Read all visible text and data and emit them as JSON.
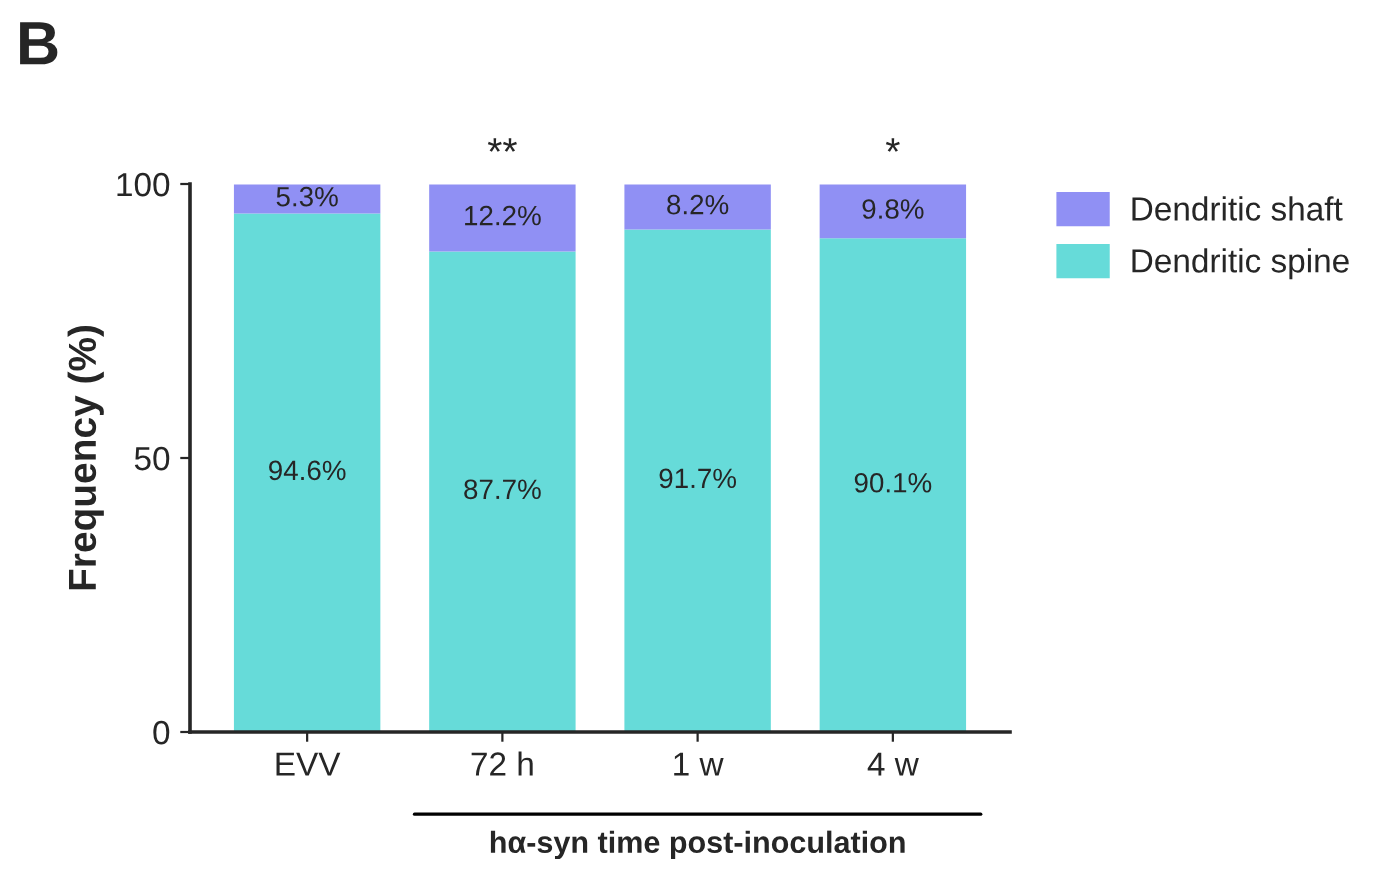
{
  "chart_data": {
    "type": "bar",
    "stacked": true,
    "categories": [
      "EVV",
      "72 h",
      "1 w",
      "4 w"
    ],
    "series": [
      {
        "name": "Dendritic spine",
        "color": "#66dbd9",
        "values": [
          94.6,
          87.7,
          91.7,
          90.1
        ],
        "value_labels": [
          "94.6%",
          "87.7%",
          "91.7%",
          "90.1%"
        ]
      },
      {
        "name": "Dendritic shaft",
        "color": "#9090f4",
        "values": [
          5.3,
          12.2,
          8.2,
          9.8
        ],
        "value_labels": [
          "5.3%",
          "12.2%",
          "8.2%",
          "9.8%"
        ]
      }
    ],
    "ylabel": "Frequency (%)",
    "xlabel": "hα-syn time post-inoculation",
    "ylim": [
      0,
      100
    ],
    "yticks": [
      0,
      50,
      100
    ],
    "grid": false,
    "legend": "top right",
    "annotations": [
      "B",
      {
        "text": "**",
        "x": "72 h",
        "y": 100
      },
      {
        "text": "*",
        "x": "4 w",
        "y": 100
      }
    ]
  }
}
